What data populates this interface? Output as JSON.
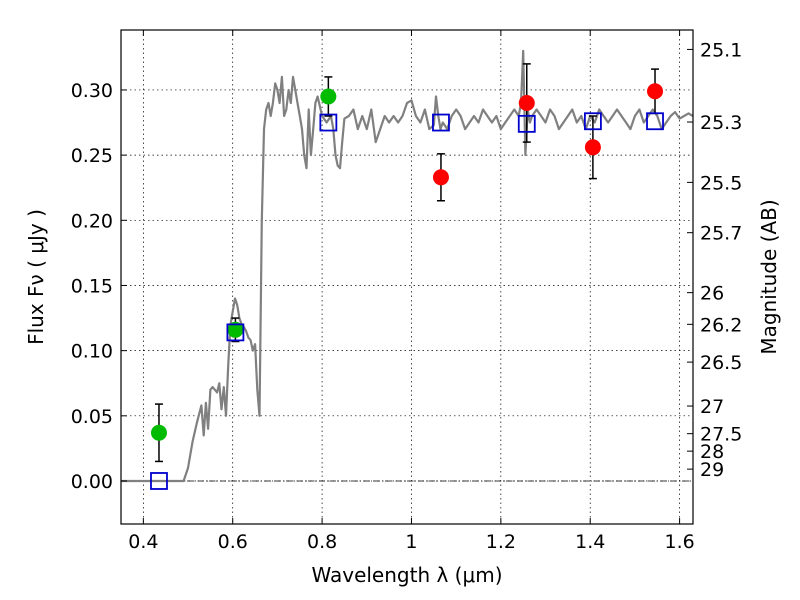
{
  "chart_data": {
    "type": "scatter",
    "xlabel": "Wavelength  λ (μm)",
    "ylabel": "Flux  Fν  ( μJy )",
    "y2label": "Magnitude (AB)",
    "xlim": [
      0.35,
      1.63
    ],
    "ylim": [
      -0.033,
      0.346
    ],
    "grid": true,
    "x_ticks": [
      0.4,
      0.6,
      0.8,
      1.0,
      1.2,
      1.4,
      1.6
    ],
    "x_tick_labels": [
      "0.4",
      "0.6",
      "0.8",
      "1",
      "1.2",
      "1.4",
      "1.6"
    ],
    "y_ticks": [
      0.0,
      0.05,
      0.1,
      0.15,
      0.2,
      0.25,
      0.3
    ],
    "y_tick_labels": [
      "0.00",
      "0.05",
      "0.10",
      "0.15",
      "0.20",
      "0.25",
      "0.30"
    ],
    "y2_ticks": [
      {
        "label": "25.1",
        "flux": 0.3311
      },
      {
        "label": "25.3",
        "flux": 0.2754
      },
      {
        "label": "25.5",
        "flux": 0.2291
      },
      {
        "label": "25.7",
        "flux": 0.1905
      },
      {
        "label": "26",
        "flux": 0.1445
      },
      {
        "label": "26.2",
        "flux": 0.1202
      },
      {
        "label": "26.5",
        "flux": 0.0912
      },
      {
        "label": "27",
        "flux": 0.0575
      },
      {
        "label": "27.5",
        "flux": 0.0363
      },
      {
        "label": "28",
        "flux": 0.0229
      },
      {
        "label": "29",
        "flux": 0.0091
      }
    ],
    "colors": {
      "model": "#808080",
      "green_points": "#00bb00",
      "red_points": "#ff0000",
      "squares": "#0000cc",
      "errorbar": "#000000",
      "zero_line": "#000000"
    },
    "series": [
      {
        "kind": "line",
        "x": [
          0.35,
          0.4,
          0.45,
          0.49,
          0.5,
          0.51,
          0.52,
          0.53,
          0.535,
          0.54,
          0.545,
          0.55,
          0.555,
          0.56,
          0.565,
          0.57,
          0.575,
          0.58,
          0.585,
          0.59,
          0.595,
          0.6,
          0.605,
          0.61,
          0.615,
          0.62,
          0.625,
          0.63,
          0.635,
          0.64,
          0.645,
          0.65,
          0.655,
          0.66,
          0.665,
          0.67,
          0.675,
          0.68,
          0.685,
          0.69,
          0.695,
          0.7,
          0.705,
          0.71,
          0.715,
          0.72,
          0.725,
          0.73,
          0.735,
          0.74,
          0.745,
          0.75,
          0.755,
          0.76,
          0.765,
          0.77,
          0.775,
          0.78,
          0.785,
          0.79,
          0.8,
          0.81,
          0.82,
          0.825,
          0.83,
          0.835,
          0.84,
          0.845,
          0.85,
          0.86,
          0.87,
          0.88,
          0.89,
          0.9,
          0.91,
          0.92,
          0.93,
          0.94,
          0.95,
          0.96,
          0.97,
          0.98,
          0.99,
          1.0,
          1.01,
          1.02,
          1.03,
          1.04,
          1.05,
          1.055,
          1.06,
          1.065,
          1.07,
          1.08,
          1.09,
          1.1,
          1.11,
          1.12,
          1.13,
          1.14,
          1.15,
          1.16,
          1.17,
          1.18,
          1.19,
          1.2,
          1.21,
          1.22,
          1.23,
          1.24,
          1.245,
          1.25,
          1.255,
          1.26,
          1.265,
          1.27,
          1.28,
          1.29,
          1.3,
          1.31,
          1.32,
          1.33,
          1.34,
          1.35,
          1.36,
          1.37,
          1.38,
          1.39,
          1.4,
          1.41,
          1.42,
          1.43,
          1.44,
          1.45,
          1.46,
          1.47,
          1.48,
          1.49,
          1.5,
          1.51,
          1.52,
          1.53,
          1.54,
          1.55,
          1.56,
          1.57,
          1.58,
          1.59,
          1.6,
          1.61,
          1.62,
          1.63
        ],
        "y": [
          0.0,
          0.0,
          0.0,
          0.0,
          0.01,
          0.03,
          0.045,
          0.058,
          0.035,
          0.06,
          0.04,
          0.07,
          0.072,
          0.07,
          0.068,
          0.075,
          0.055,
          0.072,
          0.05,
          0.09,
          0.12,
          0.13,
          0.14,
          0.135,
          0.125,
          0.12,
          0.118,
          0.115,
          0.11,
          0.108,
          0.1,
          0.105,
          0.07,
          0.05,
          0.2,
          0.27,
          0.285,
          0.29,
          0.28,
          0.29,
          0.305,
          0.3,
          0.29,
          0.31,
          0.28,
          0.285,
          0.3,
          0.29,
          0.31,
          0.3,
          0.29,
          0.28,
          0.27,
          0.25,
          0.24,
          0.285,
          0.25,
          0.27,
          0.29,
          0.295,
          0.28,
          0.275,
          0.28,
          0.27,
          0.25,
          0.242,
          0.24,
          0.26,
          0.278,
          0.28,
          0.285,
          0.27,
          0.28,
          0.27,
          0.285,
          0.26,
          0.27,
          0.28,
          0.275,
          0.28,
          0.275,
          0.28,
          0.29,
          0.292,
          0.28,
          0.275,
          0.285,
          0.27,
          0.273,
          0.295,
          0.28,
          0.27,
          0.275,
          0.27,
          0.28,
          0.285,
          0.28,
          0.27,
          0.275,
          0.28,
          0.275,
          0.285,
          0.28,
          0.275,
          0.28,
          0.27,
          0.275,
          0.28,
          0.285,
          0.28,
          0.29,
          0.33,
          0.25,
          0.285,
          0.275,
          0.28,
          0.285,
          0.28,
          0.275,
          0.285,
          0.28,
          0.27,
          0.275,
          0.28,
          0.285,
          0.275,
          0.28,
          0.27,
          0.28,
          0.275,
          0.285,
          0.28,
          0.275,
          0.28,
          0.285,
          0.28,
          0.275,
          0.27,
          0.28,
          0.285,
          0.275,
          0.28,
          0.285,
          0.28,
          0.27,
          0.275,
          0.28,
          0.283,
          0.278,
          0.28,
          0.282,
          0.28
        ]
      },
      {
        "kind": "points",
        "marker": "circle",
        "color": "#00bb00",
        "x": [
          0.435,
          0.606,
          0.814
        ],
        "y": [
          0.037,
          0.116,
          0.295
        ],
        "yerr": [
          0.022,
          0.009,
          0.015
        ]
      },
      {
        "kind": "points",
        "marker": "circle",
        "color": "#ff0000",
        "x": [
          1.066,
          1.258,
          1.406,
          1.545
        ],
        "y": [
          0.233,
          0.29,
          0.256,
          0.299
        ],
        "yerr": [
          0.018,
          0.03,
          0.024,
          0.017
        ]
      },
      {
        "kind": "points",
        "marker": "square",
        "color": "#0000cc",
        "x": [
          0.435,
          0.606,
          0.814,
          1.066,
          1.258,
          1.406,
          1.545
        ],
        "y": [
          0.0,
          0.114,
          0.275,
          0.275,
          0.274,
          0.276,
          0.276
        ]
      }
    ]
  }
}
